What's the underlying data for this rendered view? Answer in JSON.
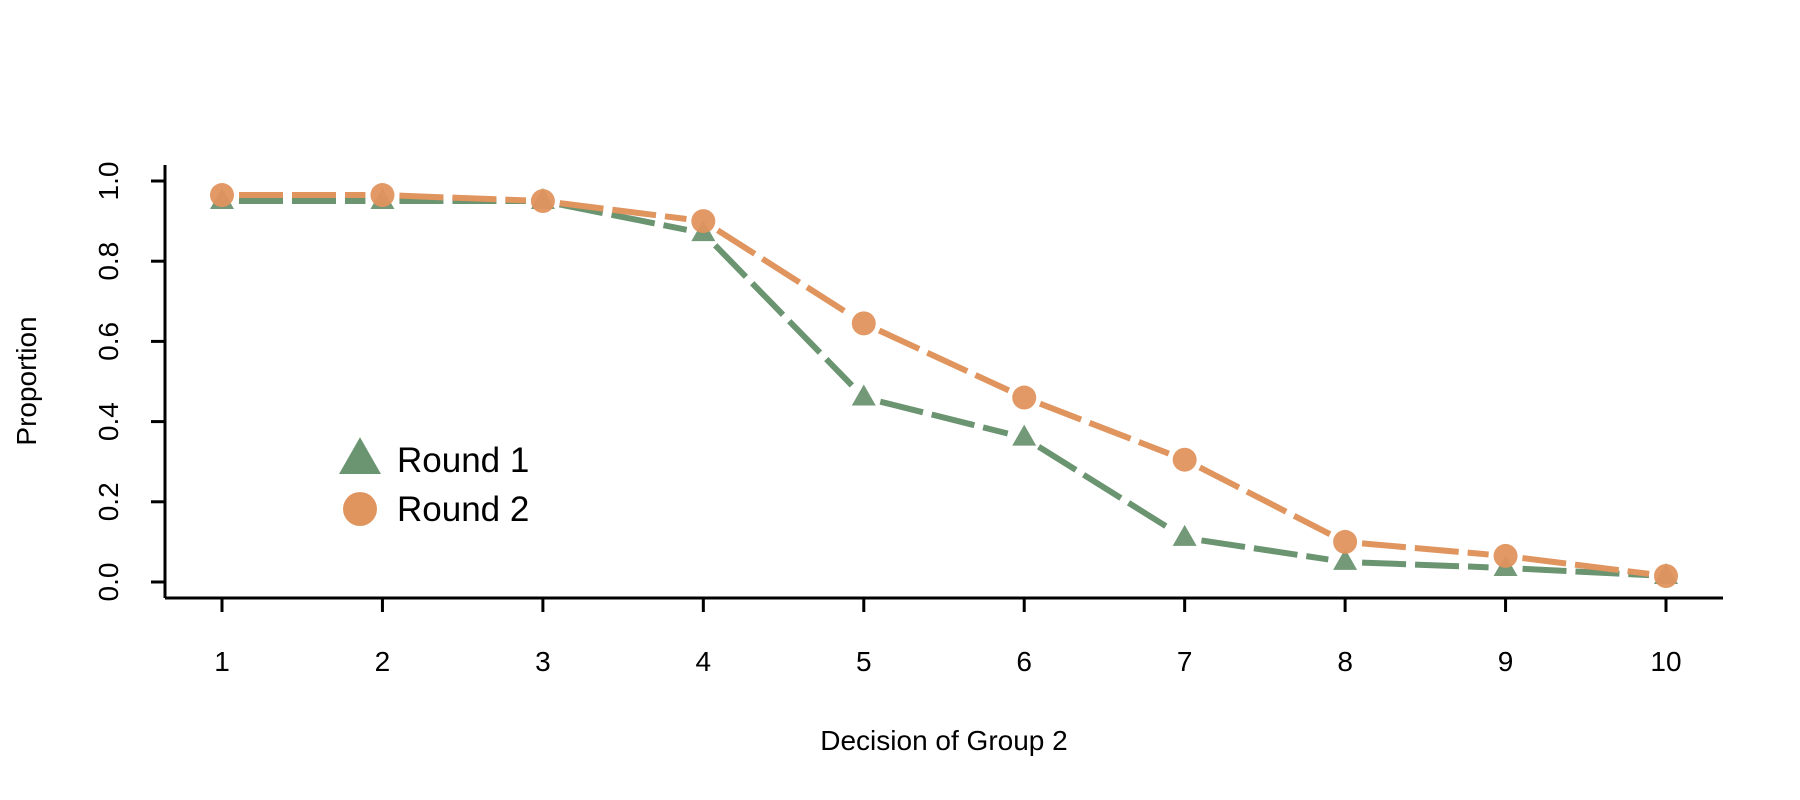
{
  "chart_data": {
    "type": "line",
    "xlabel": "Decision of Group 2",
    "ylabel": "Proportion",
    "x": [
      1,
      2,
      3,
      4,
      5,
      6,
      7,
      8,
      9,
      10
    ],
    "xlim": [
      0.65,
      10.35
    ],
    "ylim": [
      -0.04,
      1.04
    ],
    "yticks": [
      "0.0",
      "0.2",
      "0.4",
      "0.6",
      "0.8",
      "1.0"
    ],
    "grid": false,
    "legend_position": "lower-left",
    "series": [
      {
        "name": "Round 1",
        "marker": "triangle",
        "line_style": "dashed",
        "color": "#6B9471",
        "values": [
          0.95,
          0.95,
          0.95,
          0.87,
          0.46,
          0.36,
          0.11,
          0.05,
          0.035,
          0.015
        ]
      },
      {
        "name": "Round 2",
        "marker": "circle",
        "line_style": "dashed",
        "color": "#E0945E",
        "values": [
          0.965,
          0.965,
          0.95,
          0.9,
          0.645,
          0.46,
          0.305,
          0.1,
          0.065,
          0.015
        ]
      }
    ]
  }
}
